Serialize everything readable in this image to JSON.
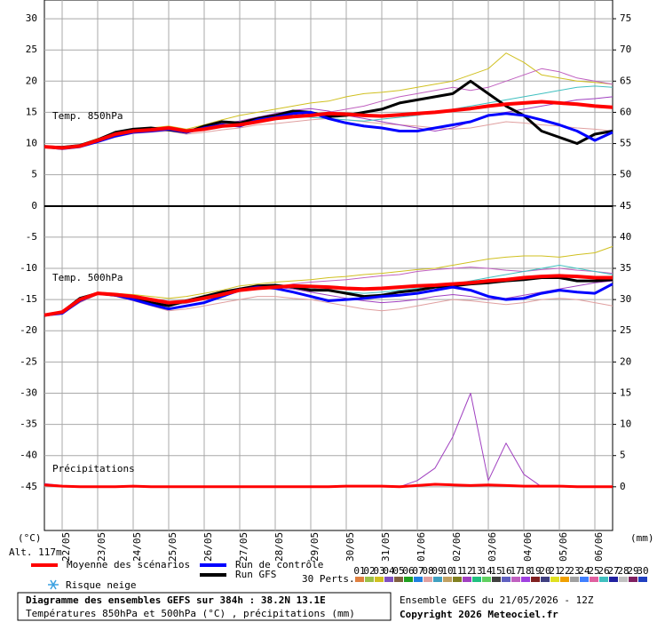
{
  "chart_data": {
    "type": "line",
    "title": "Diagramme des ensembles GEFS sur 384h : 38.2N 13.1E",
    "subtitle": "Températures 850hPa et 500hPa (°C) , précipitations (mm)",
    "run_label": "Ensemble GEFS du 21/05/2026 - 12Z",
    "copyright": "Copyright 2026 Meteociel.fr",
    "altitude": "Alt. 117m",
    "ylabel": "(°C)",
    "y2label": "(mm)",
    "panel_labels": [
      "Temp. 850hPa",
      "Temp. 500hPa",
      "Précipitations"
    ],
    "snow_label": "Risque neige",
    "perts_label": "30 Perts.",
    "grid": true,
    "x": [
      0,
      12,
      24,
      36,
      48,
      60,
      72,
      84,
      96,
      108,
      120,
      132,
      144,
      156,
      168,
      180,
      192,
      204,
      216,
      228,
      240,
      252,
      264,
      276,
      288,
      300,
      312,
      324,
      336,
      348,
      360,
      372,
      384
    ],
    "xlim": [
      0,
      384
    ],
    "xticks": [
      {
        "value": 12,
        "label": "22/05"
      },
      {
        "value": 36,
        "label": "23/05"
      },
      {
        "value": 60,
        "label": "24/05"
      },
      {
        "value": 84,
        "label": "25/05"
      },
      {
        "value": 108,
        "label": "26/05"
      },
      {
        "value": 132,
        "label": "27/05"
      },
      {
        "value": 156,
        "label": "28/05"
      },
      {
        "value": 180,
        "label": "29/05"
      },
      {
        "value": 204,
        "label": "30/05"
      },
      {
        "value": 228,
        "label": "31/05"
      },
      {
        "value": 252,
        "label": "01/06"
      },
      {
        "value": 276,
        "label": "02/06"
      },
      {
        "value": 300,
        "label": "03/06"
      },
      {
        "value": 324,
        "label": "04/06"
      },
      {
        "value": 348,
        "label": "05/06"
      },
      {
        "value": 372,
        "label": "06/06"
      }
    ],
    "ylim": [
      -52,
      33
    ],
    "yticks": [
      -45,
      -40,
      -35,
      -30,
      -25,
      -20,
      -15,
      -10,
      -5,
      0,
      5,
      10,
      15,
      20,
      25,
      30
    ],
    "y2lim": [
      -7,
      78
    ],
    "y2ticks": [
      0,
      5,
      10,
      15,
      20,
      25,
      30,
      35,
      40,
      45,
      50,
      55,
      60,
      65,
      70,
      75
    ],
    "series": [
      {
        "name": "03",
        "color": "#d0c020",
        "width": 1,
        "values": [
          9.5,
          9.3,
          9.8,
          10.8,
          11.5,
          12.2,
          12.5,
          12.8,
          12.3,
          13,
          13.8,
          14.5,
          15,
          15.5,
          16,
          16.5,
          16.8,
          17.5,
          18,
          18.2,
          18.5,
          19,
          19.5,
          20,
          21,
          22,
          24.5,
          23,
          21,
          20.5,
          20,
          19.8,
          19.5
        ]
      },
      {
        "name": "08",
        "color": "#e0a0a0",
        "width": 1,
        "values": [
          9.5,
          9.2,
          9.4,
          10.2,
          11,
          11.6,
          11.8,
          12,
          11.5,
          11.8,
          12.2,
          12.5,
          13,
          13.2,
          13.5,
          13.8,
          14,
          13.8,
          13.5,
          13.2,
          13,
          12.8,
          12.5,
          12.3,
          12.5,
          13,
          13.5,
          13.3,
          13,
          12.8,
          12.5,
          12.3,
          12
        ]
      },
      {
        "name": "12",
        "color": "#a040c0",
        "width": 1,
        "values": [
          9.5,
          9.4,
          9.7,
          10.6,
          11.6,
          12.1,
          12.4,
          12.6,
          12.1,
          12.5,
          13.2,
          13.6,
          14.2,
          14.8,
          15.3,
          15.6,
          15.2,
          14.5,
          14,
          13.5,
          13,
          12.5,
          12,
          12.5,
          13.5,
          14.5,
          15,
          15.5,
          16,
          16.5,
          17,
          17.2,
          17.5
        ]
      },
      {
        "name": "17",
        "color": "#c060c0",
        "width": 1,
        "values": [
          9.5,
          9.3,
          9.5,
          10.3,
          11.3,
          11.9,
          12.1,
          12.4,
          12,
          12.4,
          12.9,
          13.2,
          13.8,
          14,
          14.2,
          14.6,
          15,
          15.5,
          16,
          16.8,
          17.5,
          18,
          18.5,
          19,
          18.5,
          19,
          20,
          21,
          22,
          21.5,
          20.5,
          20,
          19.5
        ]
      },
      {
        "name": "26",
        "color": "#40c0c0",
        "width": 1,
        "values": [
          9.5,
          9.3,
          9.6,
          10.4,
          11.4,
          12,
          12.3,
          12.5,
          12.2,
          12.6,
          13,
          13.4,
          13.8,
          14.1,
          14.4,
          14.2,
          14,
          13.8,
          13.6,
          13.9,
          14.2,
          14.5,
          15,
          15.5,
          16,
          16.5,
          17,
          17.5,
          18,
          18.5,
          19,
          19.2,
          19
        ]
      },
      {
        "name": "03",
        "color": "#d0c020",
        "width": 1,
        "values": [
          -17.5,
          -16.8,
          -14.8,
          -13.8,
          -14,
          -14.2,
          -14.5,
          -14.8,
          -14.5,
          -14,
          -13.5,
          -12.8,
          -12.5,
          -12.2,
          -12,
          -11.8,
          -11.5,
          -11.3,
          -11,
          -10.8,
          -10.5,
          -10.2,
          -10,
          -9.5,
          -9,
          -8.5,
          -8.2,
          -8,
          -8,
          -8.2,
          -7.8,
          -7.5,
          -6.5
        ]
      },
      {
        "name": "08",
        "color": "#e0a0a0",
        "width": 1,
        "values": [
          -17.5,
          -17.2,
          -15.5,
          -14.2,
          -14.5,
          -15.2,
          -16,
          -16.8,
          -16.5,
          -16,
          -15.5,
          -15,
          -14.5,
          -14.5,
          -14.8,
          -15,
          -15.5,
          -16,
          -16.5,
          -16.8,
          -16.5,
          -16,
          -15.5,
          -15,
          -15.2,
          -15.5,
          -15.8,
          -15.5,
          -15,
          -14.8,
          -15,
          -15.5,
          -16
        ]
      },
      {
        "name": "12",
        "color": "#a040c0",
        "width": 1,
        "values": [
          -17.5,
          -16.9,
          -14.9,
          -14,
          -14.2,
          -14.6,
          -15.2,
          -15.8,
          -15.4,
          -14.7,
          -14,
          -13.4,
          -13,
          -13,
          -13.3,
          -13.8,
          -14.3,
          -14.8,
          -15.2,
          -15.5,
          -15.3,
          -15,
          -14.5,
          -14.2,
          -14.5,
          -15,
          -14.8,
          -14.3,
          -13.8,
          -13.3,
          -12.8,
          -12.3,
          -12
        ]
      },
      {
        "name": "17",
        "color": "#c060c0",
        "width": 1,
        "values": [
          -17.5,
          -17.1,
          -15.1,
          -14.1,
          -14.3,
          -14.7,
          -15.3,
          -15.9,
          -15.6,
          -15,
          -14.3,
          -13.6,
          -13.3,
          -13,
          -12.5,
          -12.2,
          -12,
          -11.8,
          -11.5,
          -11.2,
          -11,
          -10.5,
          -10.2,
          -10,
          -9.8,
          -10,
          -10.3,
          -10.5,
          -10.2,
          -10,
          -10.3,
          -10.5,
          -10.8
        ]
      },
      {
        "name": "26",
        "color": "#40c0c0",
        "width": 1,
        "values": [
          -17.5,
          -17,
          -15,
          -14.1,
          -14.4,
          -14.8,
          -15.4,
          -16,
          -15.5,
          -14.9,
          -14.2,
          -13.6,
          -13.3,
          -13.1,
          -13,
          -13.2,
          -13.5,
          -13.8,
          -14,
          -13.8,
          -13.5,
          -13.2,
          -12.8,
          -12.5,
          -12,
          -11.5,
          -11,
          -10.5,
          -10,
          -9.5,
          -10,
          -10.5,
          -11
        ]
      },
      {
        "name": "12",
        "color": "#a040c0",
        "width": 1,
        "axis": "y2",
        "values": [
          0.5,
          0.2,
          0,
          0,
          0,
          0,
          0,
          0,
          0,
          0,
          0,
          0,
          0,
          0,
          0,
          0,
          0,
          0,
          0,
          0,
          0,
          1,
          3,
          8,
          15,
          1,
          7,
          2,
          0,
          0,
          0,
          0,
          0
        ]
      },
      {
        "name": "Run GFS",
        "color": "#000000",
        "width": 3,
        "values": [
          9.5,
          9.4,
          9.7,
          10.6,
          11.8,
          12.3,
          12.5,
          12.2,
          11.8,
          12.8,
          13.5,
          13.3,
          14,
          14.5,
          15.2,
          15,
          14.3,
          14.5,
          15,
          15.5,
          16.5,
          17,
          17.5,
          18,
          20,
          18,
          16,
          14.5,
          12,
          11,
          10,
          11.5,
          12
        ]
      },
      {
        "name": "Run de contrôle",
        "color": "#0000ff",
        "width": 3,
        "values": [
          9.5,
          9.2,
          9.5,
          10.3,
          11.2,
          11.8,
          12,
          12.3,
          11.8,
          12.5,
          13,
          12.8,
          13.8,
          14.2,
          14.8,
          15,
          14,
          13.3,
          12.8,
          12.5,
          12,
          12,
          12.5,
          13,
          13.5,
          14.5,
          14.8,
          14.5,
          13.8,
          13,
          12,
          10.5,
          11.8
        ]
      },
      {
        "name": "Moyenne des scénarios",
        "color": "#ff0000",
        "width": 4,
        "values": [
          9.5,
          9.3,
          9.6,
          10.5,
          11.5,
          12,
          12.2,
          12.5,
          12,
          12.3,
          12.8,
          13,
          13.5,
          14,
          14.3,
          14.5,
          14.8,
          14.7,
          14.5,
          14.4,
          14.6,
          14.8,
          15,
          15.3,
          15.6,
          16,
          16.3,
          16.5,
          16.7,
          16.5,
          16.3,
          16,
          15.8
        ]
      },
      {
        "name": "Run GFS",
        "color": "#000000",
        "width": 3,
        "values": [
          -17.5,
          -17,
          -14.8,
          -14,
          -14.3,
          -14.8,
          -15.5,
          -16,
          -15.2,
          -14.5,
          -13.8,
          -13.3,
          -12.8,
          -12.7,
          -13,
          -13.5,
          -13.5,
          -14,
          -14.5,
          -14.3,
          -13.8,
          -13.5,
          -13,
          -12.8,
          -12.5,
          -12.3,
          -12,
          -11.8,
          -11.5,
          -11.5,
          -12,
          -12,
          -11.8
        ]
      },
      {
        "name": "Run de contrôle",
        "color": "#0000ff",
        "width": 3,
        "values": [
          -17.5,
          -17.2,
          -15.2,
          -14,
          -14.3,
          -15,
          -15.8,
          -16.5,
          -16,
          -15.5,
          -14.5,
          -13.5,
          -13,
          -13.2,
          -13.8,
          -14.5,
          -15.2,
          -15,
          -14.8,
          -14.5,
          -14.3,
          -14,
          -13.5,
          -13,
          -13.5,
          -14.5,
          -15,
          -14.8,
          -14,
          -13.5,
          -13.8,
          -14,
          -12.5
        ]
      },
      {
        "name": "Moyenne des scénarios",
        "color": "#ff0000",
        "width": 4,
        "values": [
          -17.5,
          -17,
          -15,
          -14,
          -14.2,
          -14.5,
          -15,
          -15.5,
          -15.3,
          -14.8,
          -14.2,
          -13.5,
          -13.2,
          -13,
          -12.8,
          -12.9,
          -13,
          -13.2,
          -13.3,
          -13.2,
          -13,
          -12.8,
          -12.7,
          -12.5,
          -12.3,
          -12,
          -11.8,
          -11.5,
          -11.3,
          -11.2,
          -11.3,
          -11.5,
          -11.5
        ]
      },
      {
        "name": "Moyenne des scénarios",
        "color": "#ff0000",
        "width": 3,
        "axis": "y2",
        "values": [
          0.3,
          0.1,
          0,
          0,
          0,
          0.1,
          0,
          0,
          0,
          0,
          0,
          0,
          0,
          0,
          0,
          0,
          0,
          0.1,
          0.1,
          0.1,
          0,
          0.2,
          0.4,
          0.3,
          0.2,
          0.3,
          0.2,
          0.1,
          0.1,
          0.1,
          0,
          0,
          0
        ]
      }
    ],
    "perturbations": [
      {
        "name": "01",
        "color": "#e08040"
      },
      {
        "name": "02",
        "color": "#9cc048"
      },
      {
        "name": "03",
        "color": "#d0c020"
      },
      {
        "name": "04",
        "color": "#8050c0"
      },
      {
        "name": "05",
        "color": "#806040"
      },
      {
        "name": "06",
        "color": "#20a020"
      },
      {
        "name": "07",
        "color": "#2080e0"
      },
      {
        "name": "08",
        "color": "#e0a0a0"
      },
      {
        "name": "09",
        "color": "#40a0c0"
      },
      {
        "name": "10",
        "color": "#c0a060"
      },
      {
        "name": "11",
        "color": "#808020"
      },
      {
        "name": "12",
        "color": "#a040c0"
      },
      {
        "name": "13",
        "color": "#20c080"
      },
      {
        "name": "14",
        "color": "#60d060"
      },
      {
        "name": "15",
        "color": "#404040"
      },
      {
        "name": "16",
        "color": "#6060c0"
      },
      {
        "name": "17",
        "color": "#c060c0"
      },
      {
        "name": "18",
        "color": "#a040e0"
      },
      {
        "name": "19",
        "color": "#802020"
      },
      {
        "name": "20",
        "color": "#404080"
      },
      {
        "name": "21",
        "color": "#e0e020"
      },
      {
        "name": "22",
        "color": "#f0a000"
      },
      {
        "name": "23",
        "color": "#a0a0a0"
      },
      {
        "name": "24",
        "color": "#4080ff"
      },
      {
        "name": "25",
        "color": "#e060a0"
      },
      {
        "name": "26",
        "color": "#40c0c0"
      },
      {
        "name": "27",
        "color": "#2020a0"
      },
      {
        "name": "28",
        "color": "#c0c0c0"
      },
      {
        "name": "29",
        "color": "#802060"
      },
      {
        "name": "30",
        "color": "#2040c0"
      }
    ]
  }
}
